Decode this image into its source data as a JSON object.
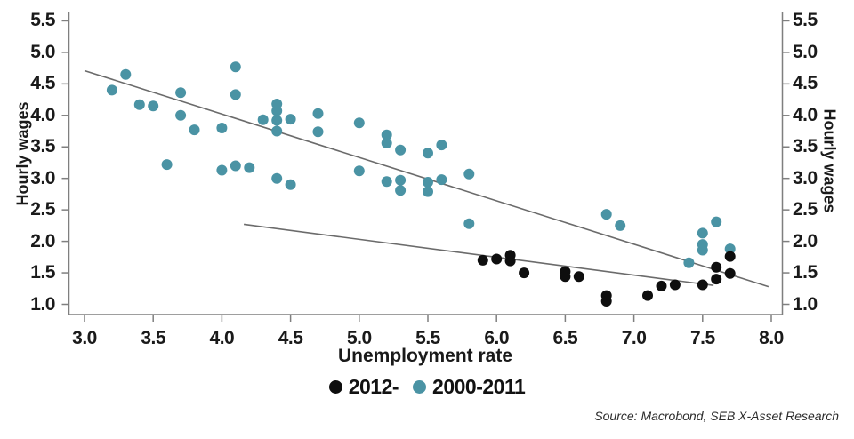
{
  "chart_data": {
    "type": "scatter",
    "title": "",
    "xlabel": "Unemployment rate",
    "ylabel_left": "Hourly wages",
    "ylabel_right": "Hourly wages",
    "source": "Source: Macrobond, SEB X-Asset Research",
    "x_ticks": [
      "3.0",
      "3.5",
      "4.0",
      "4.5",
      "5.0",
      "5.5",
      "6.0",
      "6.5",
      "7.0",
      "7.5",
      "8.0"
    ],
    "y_ticks": [
      "1.0",
      "1.5",
      "2.0",
      "2.5",
      "3.0",
      "3.5",
      "4.0",
      "4.5",
      "5.0",
      "5.5"
    ],
    "xlim": [
      2.88,
      8.08
    ],
    "ylim": [
      0.84,
      5.66
    ],
    "grid": false,
    "legend_position": "bottom",
    "colors": {
      "series_2012": "#0e0e0e",
      "series_2000_2011": "#4a93a4",
      "trendline": "#6b6b6b",
      "axis": "#7f7f7f",
      "text": "#1a1a1a"
    },
    "series": [
      {
        "name": "2012-",
        "color": "#0e0e0e",
        "points": [
          [
            5.9,
            1.7
          ],
          [
            6.0,
            1.72
          ],
          [
            6.1,
            1.78
          ],
          [
            6.1,
            1.69
          ],
          [
            6.2,
            1.5
          ],
          [
            6.5,
            1.52
          ],
          [
            6.5,
            1.44
          ],
          [
            6.6,
            1.44
          ],
          [
            6.8,
            1.14
          ],
          [
            6.8,
            1.05
          ],
          [
            7.1,
            1.14
          ],
          [
            7.2,
            1.29
          ],
          [
            7.3,
            1.31
          ],
          [
            7.5,
            1.31
          ],
          [
            7.6,
            1.4
          ],
          [
            7.6,
            1.59
          ],
          [
            7.7,
            1.49
          ],
          [
            7.7,
            1.76
          ]
        ]
      },
      {
        "name": "2000-2011",
        "color": "#4a93a4",
        "points": [
          [
            3.2,
            4.4
          ],
          [
            3.3,
            4.65
          ],
          [
            3.4,
            4.17
          ],
          [
            3.5,
            4.15
          ],
          [
            3.6,
            3.22
          ],
          [
            3.7,
            4.36
          ],
          [
            3.7,
            4.0
          ],
          [
            3.8,
            3.77
          ],
          [
            4.0,
            3.8
          ],
          [
            4.0,
            3.13
          ],
          [
            4.1,
            4.77
          ],
          [
            4.1,
            4.33
          ],
          [
            4.1,
            3.2
          ],
          [
            4.2,
            3.17
          ],
          [
            4.3,
            3.93
          ],
          [
            4.4,
            4.18
          ],
          [
            4.4,
            4.07
          ],
          [
            4.4,
            3.92
          ],
          [
            4.4,
            3.75
          ],
          [
            4.4,
            3.0
          ],
          [
            4.5,
            3.94
          ],
          [
            4.5,
            2.9
          ],
          [
            4.7,
            4.03
          ],
          [
            4.7,
            3.74
          ],
          [
            5.0,
            3.88
          ],
          [
            5.0,
            3.12
          ],
          [
            5.2,
            3.69
          ],
          [
            5.2,
            3.56
          ],
          [
            5.2,
            2.95
          ],
          [
            5.3,
            3.45
          ],
          [
            5.3,
            2.97
          ],
          [
            5.3,
            2.81
          ],
          [
            5.5,
            3.4
          ],
          [
            5.5,
            2.94
          ],
          [
            5.5,
            2.79
          ],
          [
            5.6,
            3.53
          ],
          [
            5.6,
            2.98
          ],
          [
            5.8,
            3.07
          ],
          [
            5.8,
            2.28
          ],
          [
            6.8,
            2.43
          ],
          [
            6.9,
            2.25
          ],
          [
            7.4,
            1.66
          ],
          [
            7.5,
            2.13
          ],
          [
            7.5,
            1.95
          ],
          [
            7.5,
            1.86
          ],
          [
            7.6,
            2.31
          ],
          [
            7.7,
            1.88
          ]
        ]
      }
    ],
    "trendlines": [
      {
        "series": "2000-2011",
        "x1": 3.0,
        "y1": 4.71,
        "x2": 7.98,
        "y2": 1.28
      },
      {
        "series": "2012-",
        "x1": 4.16,
        "y1": 2.27,
        "x2": 7.58,
        "y2": 1.3
      }
    ]
  }
}
